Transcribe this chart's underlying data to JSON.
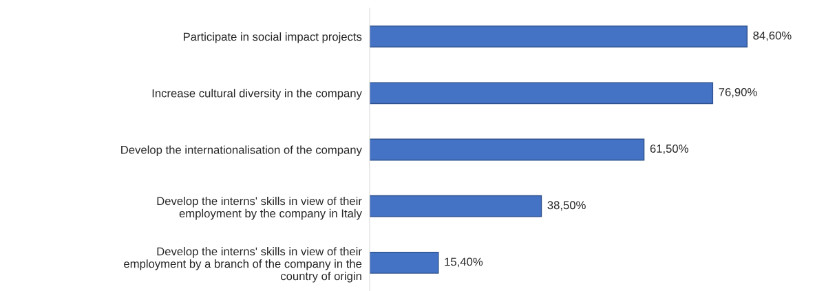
{
  "chart_data": {
    "type": "bar",
    "orientation": "horizontal",
    "categories": [
      "Participate in social impact projects",
      "Increase cultural diversity in the company",
      "Develop the internationalisation of the company",
      "Develop the interns' skills in view of their\nemployment by the company in Italy",
      "Develop the interns' skills in view of their\nemployment by a branch of the company in the\ncountry of origin"
    ],
    "values": [
      84.6,
      76.9,
      61.5,
      38.5,
      15.4
    ],
    "value_labels": [
      "84,60%",
      "76,90%",
      "61,50%",
      "38,50%",
      "15,40%"
    ],
    "color": "#4472c4",
    "tick_labels": "y",
    "grid": false,
    "legend": false
  }
}
